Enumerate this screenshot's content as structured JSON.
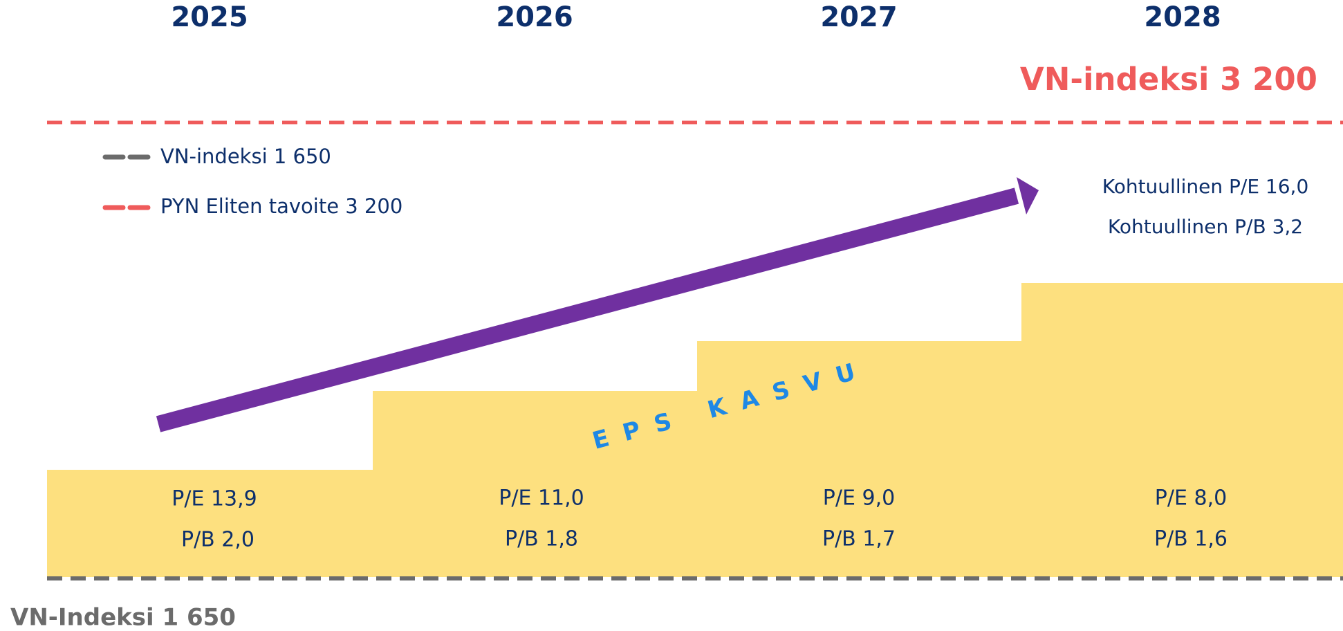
{
  "header": {
    "years": [
      "2025",
      "2026",
      "2027",
      "2028"
    ]
  },
  "target_label": "VN-indeksi 3 200",
  "legend": [
    "VN-indeksi 1 650",
    "PYN Eliten tavoite 3 200"
  ],
  "fair_values": [
    "Kohtuullinen P/E 16,0",
    "Kohtuullinen P/B 3,2"
  ],
  "growth_label": "EPS KASVU",
  "steps": [
    {
      "pe": "P/E 13,9",
      "pb": "P/B 2,0"
    },
    {
      "pe": "P/E 11,0",
      "pb": "P/B 1,8"
    },
    {
      "pe": "P/E 9,0",
      "pb": "P/B 1,7"
    },
    {
      "pe": "P/E 8,0",
      "pb": "P/B 1,6"
    }
  ],
  "base_label": "VN-Indeksi 1 650"
}
